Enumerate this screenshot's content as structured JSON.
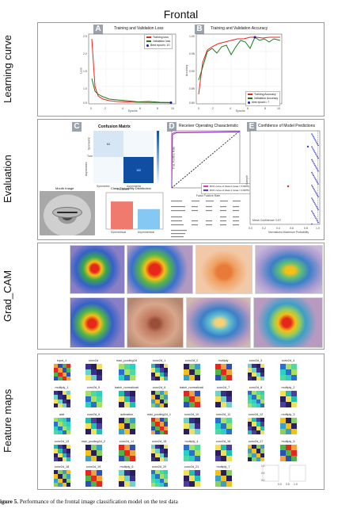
{
  "figure": {
    "title": "Frontal",
    "caption_label": "igure 5.",
    "caption_text": "Performance of the frontal image classification model on the test data"
  },
  "rows": [
    "Learning curve",
    "Evaluation",
    "Grad_CAM",
    "Feature maps"
  ],
  "panels": {
    "A": {
      "letter": "A",
      "title": "Training and Validation Loss",
      "xlabel": "Epochs",
      "ylabel": "Loss",
      "legend": [
        "Training loss",
        "Validation loss",
        "Best epoch= 10"
      ],
      "colors": {
        "train": "#e8251f",
        "val": "#1f7a1f",
        "best": "#1a1aa8"
      }
    },
    "B": {
      "letter": "B",
      "title": "Training and Validation Accuracy",
      "xlabel": "Epochs",
      "ylabel": "Accuracy",
      "legend": [
        "Training Accuracy",
        "Validation Accuracy",
        "best epoch= 7"
      ],
      "colors": {
        "train": "#e8251f",
        "val": "#1f7a1f",
        "best": "#1a1aa8"
      }
    },
    "C": {
      "letter": "C",
      "title": "Confusion Matrix",
      "cells": [
        "64",
        "",
        "",
        "102"
      ],
      "labels": [
        "Symmetric",
        "Asymmetric"
      ],
      "xlabel": "Predicted",
      "ylabel": "True",
      "colors": {
        "dark": "#0f4ea3",
        "light": "#f3f8fd",
        "mid": "#d7e6f4"
      }
    },
    "D": {
      "letter": "D",
      "title": "Receiver Operating Characteristic",
      "xlabel": "False Positive Rate",
      "ylabel": "True Positive Rate",
      "legend": [
        "ROC curve of class 0 (area = 0.9975)",
        "ROC curve of class 1 (area = 0.9975)"
      ]
    },
    "E": {
      "letter": "E",
      "title": "Confidence of Model Predictions",
      "xlabel": "Normalized Maximum Probability",
      "ylabel": "Sample",
      "annotation": "Mean Confidence: 0.97",
      "xticks": [
        "0.0",
        "0.2",
        "0.4",
        "0.6",
        "0.8",
        "1.0"
      ]
    },
    "prob": {
      "title": "Class Probability Distribution",
      "bar_labels": [
        "Symmetrical",
        "Asymmetrical"
      ],
      "bars": [
        0.58,
        0.42
      ],
      "colors": [
        "#f07a6e",
        "#86c8f4"
      ]
    },
    "mouth": {
      "title": "Mouth Image"
    }
  },
  "feature_maps": {
    "labels": [
      [
        "input_1",
        "conv2d",
        "max_pooling2d",
        "conv2d_1",
        "conv2d_2",
        "multiply",
        "conv2d_3",
        "conv2d_4"
      ],
      [
        "multiply_1",
        "conv2d_5",
        "batch_normalization",
        "conv2d_6",
        "batch_normalization_1",
        "conv2d_7",
        "conv2d_8",
        "multiply_2"
      ],
      [
        "add",
        "conv2d_9",
        "activation",
        "max_pooling2d_1",
        "conv2d_10",
        "conv2d_11",
        "conv2d_12",
        "multiply_3"
      ],
      [
        "conv2d_13",
        "max_pooling2d_2",
        "conv2d_14",
        "conv2d_15",
        "multiply_4",
        "conv2d_16",
        "conv2d_17",
        "multiply_5"
      ],
      [
        "conv2d_18",
        "conv2d_19",
        "multiply_6",
        "conv2d_20",
        "conv2d_21",
        "multiply_7",
        "",
        ""
      ]
    ],
    "axis_ticks": [
      "0.0",
      "0.5",
      "1.0"
    ]
  }
}
